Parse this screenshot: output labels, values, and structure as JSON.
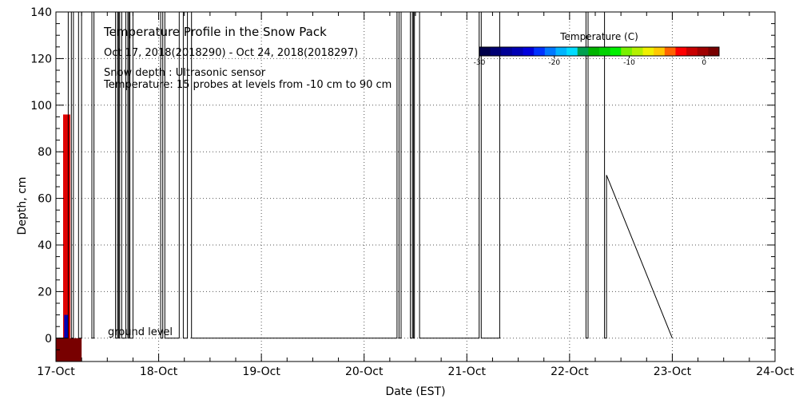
{
  "chart_data": {
    "type": "line",
    "title": "Temperature Profile in the Snow Pack",
    "subtitle": "Oct 17, 2018(2018290) - Oct 24, 2018(2018297)",
    "annotations": [
      "Snow depth : Ultrasonic sensor",
      "Temperature: 15 probes at levels from -10 cm to 90 cm"
    ],
    "ground_label": "ground level",
    "xlabel": "Date (EST)",
    "ylabel": "Depth, cm",
    "x_tick_labels": [
      "17-Oct",
      "18-Oct",
      "19-Oct",
      "20-Oct",
      "21-Oct",
      "22-Oct",
      "23-Oct",
      "24-Oct"
    ],
    "xlim_days": [
      0,
      7
    ],
    "ylim": [
      -10,
      140
    ],
    "y_ticks": [
      0,
      20,
      40,
      60,
      80,
      100,
      120,
      140
    ],
    "grid": true,
    "colorbar": {
      "title": "Temperature (C)",
      "range": [
        -30,
        2
      ],
      "tick_values": [
        -30,
        -20,
        -10,
        0
      ],
      "tick_labels": [
        "-30",
        "-20",
        "-10",
        "0"
      ],
      "colors": [
        "#00004b",
        "#000073",
        "#000096",
        "#0000b4",
        "#0000dc",
        "#0032ff",
        "#0078ff",
        "#00b4ff",
        "#00dcff",
        "#00a050",
        "#00b400",
        "#00d200",
        "#00f000",
        "#78f000",
        "#b4f000",
        "#f0f000",
        "#ffc800",
        "#ff6400",
        "#ff0000",
        "#c80000",
        "#a00000",
        "#780000"
      ]
    },
    "temperature_blocks": [
      {
        "x0": 0.0,
        "x1": 0.25,
        "y0": -10,
        "y1": 0,
        "color": "#780000"
      },
      {
        "x0": 0.07,
        "x1": 0.14,
        "y0": 0,
        "y1": 96,
        "color": "#e00000"
      },
      {
        "x0": 0.08,
        "x1": 0.12,
        "y0": 0,
        "y1": 10,
        "color": "#0000b4"
      }
    ],
    "snow_depth_series": {
      "name": "Snow depth",
      "x": [
        0.0,
        0.12,
        0.12,
        0.15,
        0.15,
        0.17,
        0.17,
        0.22,
        0.22,
        0.25,
        0.25,
        0.35,
        0.35,
        0.37,
        0.37,
        0.58,
        0.58,
        0.6,
        0.6,
        0.61,
        0.61,
        0.62,
        0.62,
        0.64,
        0.64,
        0.68,
        0.68,
        0.7,
        0.7,
        0.71,
        0.71,
        0.72,
        0.72,
        0.75,
        0.75,
        1.02,
        1.02,
        1.04,
        1.04,
        1.06,
        1.06,
        1.2,
        1.2,
        1.24,
        1.24,
        1.28,
        1.28,
        1.32,
        1.32,
        3.32,
        3.32,
        3.34,
        3.34,
        3.36,
        3.36,
        3.45,
        3.45,
        3.47,
        3.47,
        3.48,
        3.48,
        3.49,
        3.49,
        3.54,
        3.54,
        4.12,
        4.12,
        4.14,
        4.14,
        4.32,
        4.32,
        5.16,
        5.16,
        5.18,
        5.18,
        5.34,
        5.34,
        5.36,
        5.36,
        6.0
      ],
      "y": [
        0,
        0,
        140,
        140,
        0,
        0,
        140,
        140,
        0,
        0,
        140,
        140,
        0,
        0,
        140,
        140,
        0,
        0,
        140,
        140,
        0,
        0,
        140,
        140,
        0,
        0,
        140,
        140,
        0,
        0,
        140,
        140,
        0,
        0,
        140,
        140,
        0,
        0,
        140,
        140,
        0,
        0,
        140,
        140,
        0,
        0,
        140,
        140,
        0,
        0,
        140,
        140,
        0,
        0,
        140,
        140,
        0,
        0,
        140,
        140,
        0,
        0,
        140,
        140,
        0,
        0,
        140,
        140,
        0,
        0,
        140,
        140,
        0,
        0,
        140,
        140,
        0,
        0,
        70,
        0
      ]
    }
  }
}
